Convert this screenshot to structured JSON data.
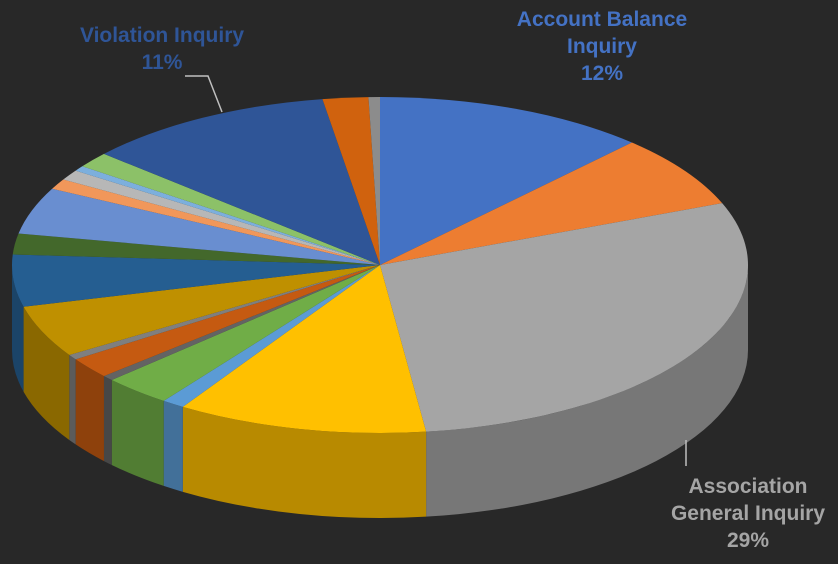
{
  "chart_data": {
    "type": "pie3d",
    "categories": [
      "Account Balance Inquiry",
      null,
      "Association General Inquiry",
      null,
      null,
      null,
      null,
      null,
      null,
      null,
      null,
      null,
      null,
      null,
      null,
      null,
      null,
      "Violation Inquiry",
      null,
      null
    ],
    "values": [
      12,
      7,
      29,
      11,
      1,
      3,
      0.5,
      2,
      0.5,
      5,
      5,
      2,
      4.5,
      1,
      1,
      0.5,
      1.5,
      11,
      2,
      0.5
    ],
    "value_labels": [
      "12%",
      null,
      "29%",
      null,
      null,
      null,
      null,
      null,
      null,
      null,
      null,
      null,
      null,
      null,
      null,
      null,
      null,
      "11%",
      null,
      null
    ],
    "colors": [
      "#4472c4",
      "#ed7d31",
      "#a5a5a5",
      "#ffc000",
      "#5b9bd5",
      "#70ad47",
      "#636363",
      "#c55a11",
      "#7f7f7f",
      "#bf9000",
      "#255e91",
      "#43682b",
      "#698ed0",
      "#f1975a",
      "#b7b7b7",
      "#7cafdd",
      "#8cc168",
      "#2f5597",
      "#d0620e",
      "#8c8c8c"
    ]
  }
}
